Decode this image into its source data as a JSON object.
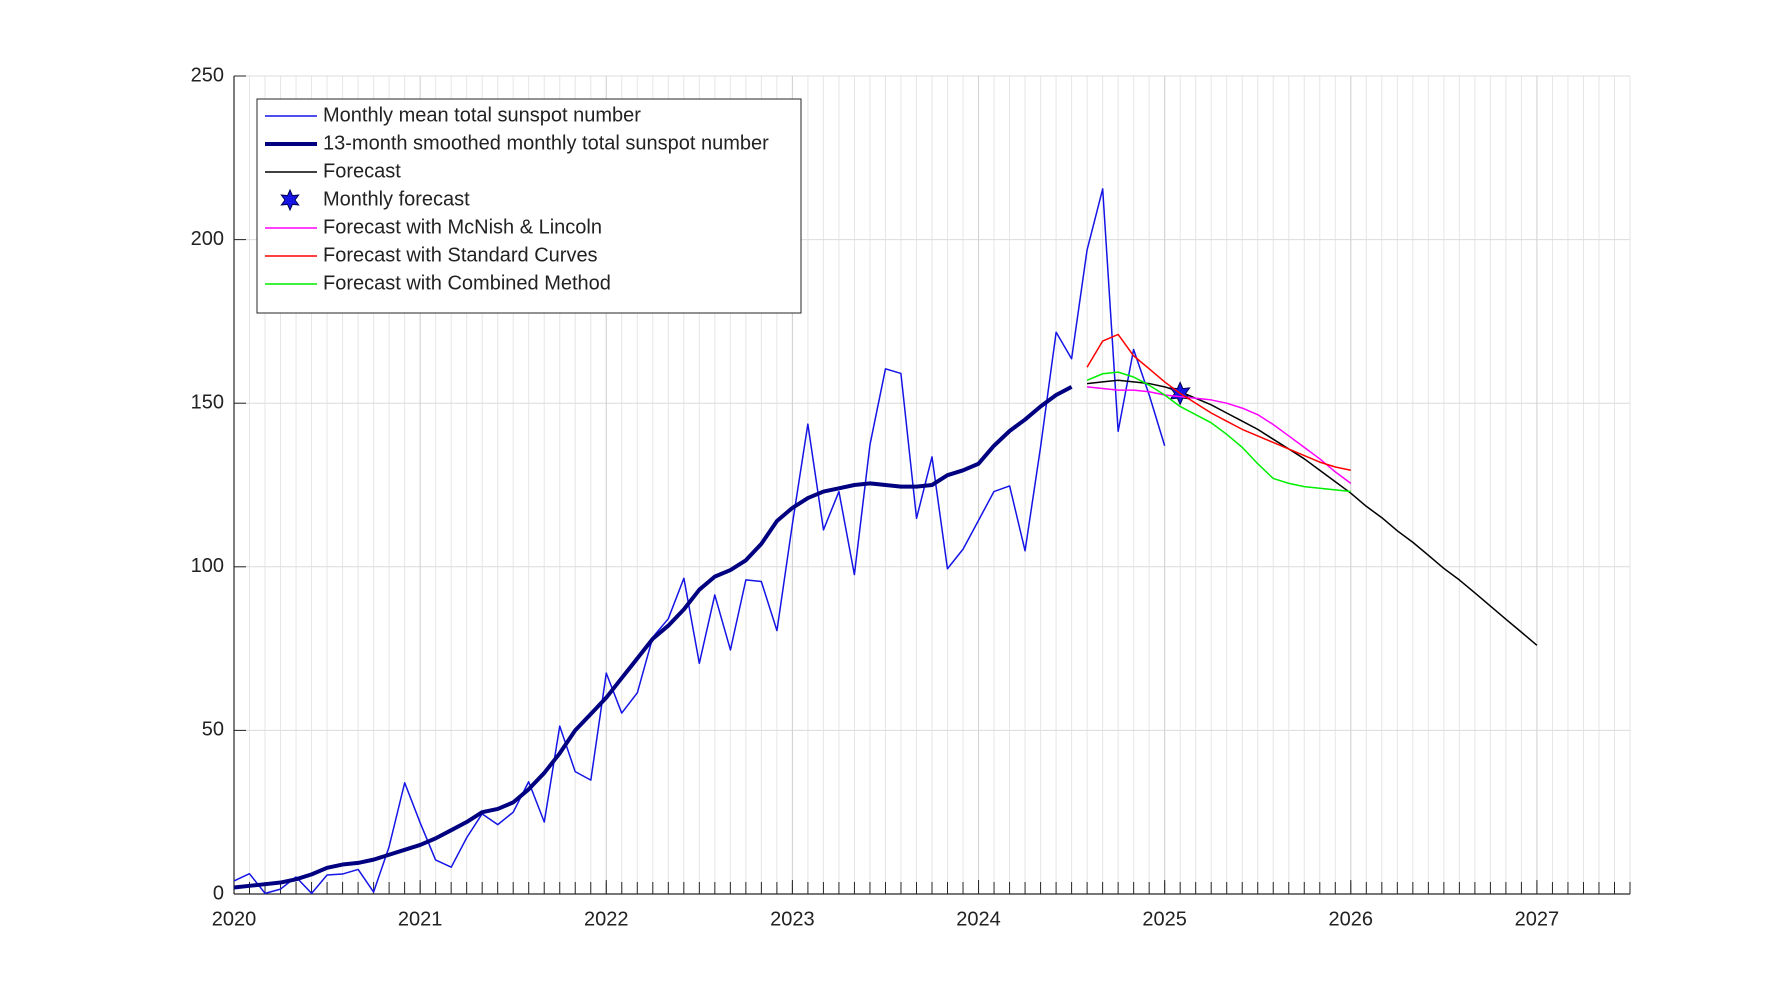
{
  "chart_data": {
    "type": "line",
    "xlim": [
      2020,
      2027.5
    ],
    "xticks": [
      2020,
      2021,
      2022,
      2023,
      2024,
      2025,
      2026,
      2027
    ],
    "ylim": [
      0,
      250
    ],
    "yticks": [
      0,
      50,
      100,
      150,
      200,
      250
    ],
    "grid": true,
    "legend": "upper-left",
    "series": [
      {
        "name": "Monthly mean total sunspot number",
        "color": "#1414e6",
        "width": 1.5,
        "x": [
          2020,
          2020.083,
          2020.167,
          2020.25,
          2020.333,
          2020.417,
          2020.5,
          2020.583,
          2020.667,
          2020.75,
          2020.833,
          2020.917,
          2021,
          2021.083,
          2021.167,
          2021.25,
          2021.333,
          2021.417,
          2021.5,
          2021.583,
          2021.667,
          2021.75,
          2021.833,
          2021.917,
          2022,
          2022.083,
          2022.167,
          2022.25,
          2022.333,
          2022.417,
          2022.5,
          2022.583,
          2022.667,
          2022.75,
          2022.833,
          2022.917,
          2023,
          2023.083,
          2023.167,
          2023.25,
          2023.333,
          2023.417,
          2023.5,
          2023.583,
          2023.667,
          2023.75,
          2023.833,
          2023.917,
          2024,
          2024.083,
          2024.167,
          2024.25,
          2024.333,
          2024.417,
          2024.5,
          2024.583,
          2024.667,
          2024.75,
          2024.833,
          2024.917,
          2025
        ],
        "values": [
          4,
          6.2,
          0.2,
          1.5,
          5.2,
          0.2,
          5.8,
          6.1,
          7.5,
          0.6,
          14.4,
          34.0,
          21.8,
          10.4,
          8.2,
          17.2,
          24.5,
          21.2,
          25.0,
          34.3,
          22.0,
          51.3,
          37.4,
          34.8,
          67.5,
          55.3,
          61.5,
          78.5,
          84.1,
          96.5,
          70.5,
          91.4,
          74.6,
          96.0,
          95.5,
          80.5,
          113.1,
          143.6,
          111.3,
          123.0,
          97.6,
          137.4,
          160.5,
          159.1,
          114.8,
          133.6,
          99.4,
          105.4,
          114.2,
          123.0,
          124.7,
          104.9,
          136.5,
          171.7,
          163.6,
          196.8,
          215.5,
          141.4,
          166.4,
          152.5,
          137.0
        ]
      },
      {
        "name": "13-month smoothed monthly total sunspot number",
        "color": "#000080",
        "width": 4,
        "x": [
          2020,
          2020.083,
          2020.167,
          2020.25,
          2020.333,
          2020.417,
          2020.5,
          2020.583,
          2020.667,
          2020.75,
          2020.833,
          2020.917,
          2021,
          2021.083,
          2021.167,
          2021.25,
          2021.333,
          2021.417,
          2021.5,
          2021.583,
          2021.667,
          2021.75,
          2021.833,
          2021.917,
          2022,
          2022.083,
          2022.167,
          2022.25,
          2022.333,
          2022.417,
          2022.5,
          2022.583,
          2022.667,
          2022.75,
          2022.833,
          2022.917,
          2023,
          2023.083,
          2023.167,
          2023.25,
          2023.333,
          2023.417,
          2023.5,
          2023.583,
          2023.667,
          2023.75,
          2023.833,
          2023.917,
          2024,
          2024.083,
          2024.167,
          2024.25,
          2024.333,
          2024.417,
          2024.5
        ],
        "values": [
          2,
          2.5,
          3,
          3.5,
          4.5,
          6,
          8,
          9,
          9.5,
          10.5,
          12,
          13.5,
          15,
          17,
          19.5,
          22,
          25,
          26,
          28,
          32,
          37,
          43,
          50,
          55,
          60,
          66,
          72,
          78,
          82,
          87,
          93,
          97,
          99,
          102,
          107,
          114,
          118,
          121,
          123,
          124,
          125,
          125.5,
          125,
          124.5,
          124.5,
          125,
          128,
          129.5,
          131.5,
          137,
          141.5,
          145,
          149,
          152.5,
          155
        ]
      },
      {
        "name": "Forecast",
        "color": "#000000",
        "width": 1.5,
        "x": [
          2024.583,
          2024.667,
          2024.75,
          2024.833,
          2024.917,
          2025,
          2025.083,
          2025.167,
          2025.25,
          2025.333,
          2025.417,
          2025.5,
          2025.583,
          2025.667,
          2025.75,
          2025.833,
          2025.917,
          2026,
          2026.083,
          2026.167,
          2026.25,
          2026.333,
          2026.417,
          2026.5,
          2026.583,
          2026.667,
          2026.75,
          2026.833,
          2026.917,
          2027
        ],
        "values": [
          156,
          156.5,
          157,
          156.5,
          156,
          155,
          153.5,
          151.5,
          149.5,
          147,
          144.5,
          142,
          139,
          136,
          133,
          129.5,
          126,
          122.5,
          118.5,
          115,
          111,
          107.5,
          103.5,
          99.5,
          96,
          92,
          88,
          84,
          80,
          76
        ]
      },
      {
        "name": "Monthly forecast",
        "color": "#1414e6",
        "marker": "hexagram",
        "x": [
          2025.083
        ],
        "values": [
          153
        ]
      },
      {
        "name": "Forecast with McNish & Lincoln",
        "color": "#ff00ff",
        "width": 1.5,
        "x": [
          2024.583,
          2024.667,
          2024.75,
          2024.833,
          2024.917,
          2025,
          2025.083,
          2025.167,
          2025.25,
          2025.333,
          2025.417,
          2025.5,
          2025.583,
          2025.667,
          2025.75,
          2025.833,
          2025.917,
          2026
        ],
        "values": [
          155,
          154.5,
          154,
          154,
          153.5,
          152.5,
          152,
          151.5,
          151,
          150,
          148.5,
          146.5,
          143.5,
          140,
          136.5,
          133,
          129,
          125.5
        ]
      },
      {
        "name": "Forecast with Standard Curves",
        "color": "#ff0000",
        "width": 1.5,
        "x": [
          2024.583,
          2024.667,
          2024.75,
          2024.833,
          2024.917,
          2025,
          2025.083,
          2025.167,
          2025.25,
          2025.333,
          2025.417,
          2025.5,
          2025.583,
          2025.667,
          2025.75,
          2025.833,
          2025.917,
          2026
        ],
        "values": [
          161,
          169,
          171,
          164.5,
          160.5,
          156.5,
          153,
          150,
          147,
          144.5,
          142,
          140,
          138,
          136,
          134,
          132,
          130.5,
          129.5
        ]
      },
      {
        "name": "Forecast with Combined Method",
        "color": "#00ee00",
        "width": 1.5,
        "x": [
          2024.583,
          2024.667,
          2024.75,
          2024.833,
          2024.917,
          2025,
          2025.083,
          2025.167,
          2025.25,
          2025.333,
          2025.417,
          2025.5,
          2025.583,
          2025.667,
          2025.75,
          2025.833,
          2025.917,
          2026
        ],
        "values": [
          157,
          159,
          159.5,
          158,
          155.5,
          152.5,
          149,
          146.5,
          144,
          140.5,
          136.5,
          131.5,
          127,
          125.5,
          124.5,
          124,
          123.5,
          123
        ]
      }
    ]
  }
}
